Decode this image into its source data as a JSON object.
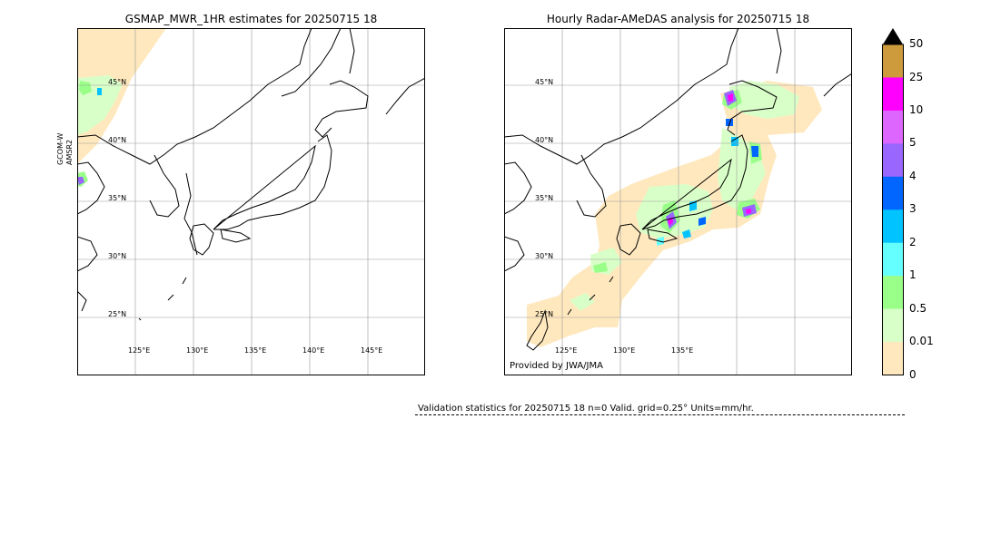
{
  "left_map": {
    "title": "GSMAP_MWR_1HR estimates for 20250715 18",
    "satellite_label": "GCOM-W\nAMSR2",
    "lat_labels": [
      "45°N",
      "40°N",
      "35°N",
      "30°N",
      "25°N"
    ],
    "lon_labels": [
      "125°E",
      "130°E",
      "135°E",
      "140°E",
      "145°E"
    ]
  },
  "right_map": {
    "title": "Hourly Radar-AMeDAS analysis for 20250715 18",
    "lat_labels": [
      "45°N",
      "40°N",
      "35°N",
      "30°N",
      "25°N"
    ],
    "lon_labels": [
      "125°E",
      "130°E",
      "135°E"
    ],
    "provided_by": "Provided by JWA/JMA"
  },
  "colorbar": {
    "labels": [
      "50",
      "25",
      "10",
      "5",
      "4",
      "3",
      "2",
      "1",
      "0.5",
      "0.01",
      "0"
    ],
    "colors": [
      "#cd9a3c",
      "#ff00ff",
      "#dd66ff",
      "#9966ff",
      "#0066ff",
      "#00c3ff",
      "#66ffff",
      "#99ff88",
      "#d9ffc8",
      "#ffe8be"
    ],
    "extend_color": "#000000"
  },
  "validation": {
    "text": "Validation statistics for 20250715 18  n=0 Valid. grid=0.25° Units=mm/hr."
  }
}
